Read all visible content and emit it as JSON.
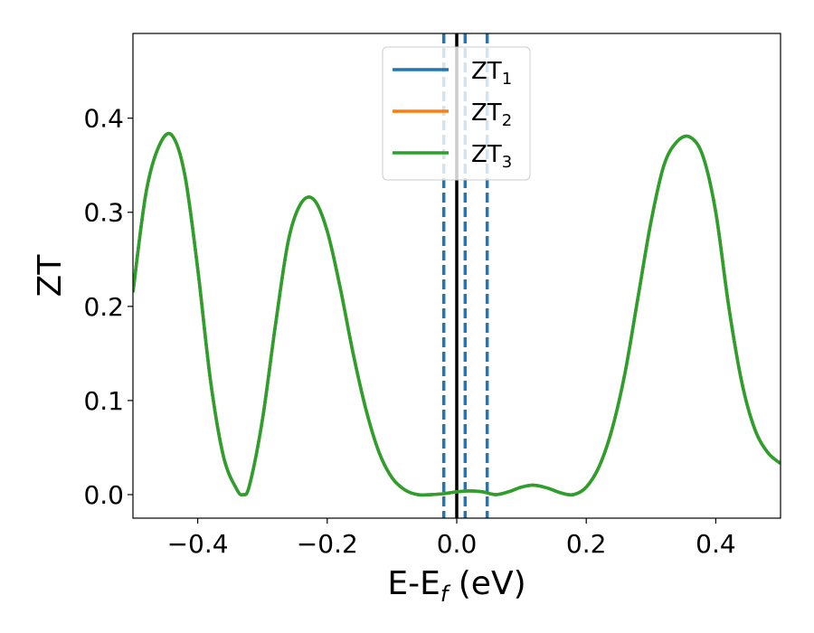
{
  "chart_data": {
    "type": "line",
    "xlabel": {
      "main": "E-E",
      "sub": "f",
      "tail": " (eV)"
    },
    "ylabel": "ZT",
    "xlim": [
      -0.5,
      0.5
    ],
    "ylim": [
      -0.025,
      0.49
    ],
    "xticks": [
      -0.4,
      -0.2,
      0.0,
      0.2,
      0.4
    ],
    "xtick_labels": [
      "−0.4",
      "−0.2",
      "0.0",
      "0.2",
      "0.4"
    ],
    "yticks": [
      0.0,
      0.1,
      0.2,
      0.3,
      0.4
    ],
    "ytick_labels": [
      "0.0",
      "0.1",
      "0.2",
      "0.3",
      "0.4"
    ],
    "grid": false,
    "legend_position": "top-center",
    "x": [
      -0.5,
      -0.48,
      -0.46,
      -0.44,
      -0.42,
      -0.4,
      -0.38,
      -0.36,
      -0.34,
      -0.33,
      -0.32,
      -0.3,
      -0.28,
      -0.26,
      -0.24,
      -0.22,
      -0.2,
      -0.18,
      -0.16,
      -0.14,
      -0.12,
      -0.1,
      -0.08,
      -0.06,
      -0.04,
      -0.02,
      0.0,
      0.02,
      0.04,
      0.06,
      0.08,
      0.1,
      0.12,
      0.14,
      0.16,
      0.18,
      0.2,
      0.22,
      0.24,
      0.26,
      0.28,
      0.3,
      0.32,
      0.34,
      0.36,
      0.38,
      0.4,
      0.42,
      0.44,
      0.46,
      0.48,
      0.5
    ],
    "series": [
      {
        "name": "ZT",
        "name_sub": "1",
        "color": "#1f77b4",
        "values": [
          0.215,
          0.32,
          0.37,
          0.382,
          0.34,
          0.24,
          0.12,
          0.04,
          0.006,
          0.0,
          0.01,
          0.08,
          0.18,
          0.27,
          0.31,
          0.313,
          0.28,
          0.22,
          0.15,
          0.09,
          0.045,
          0.018,
          0.005,
          0.0,
          0.0,
          0.001,
          0.003,
          0.004,
          0.003,
          0.0,
          0.003,
          0.008,
          0.01,
          0.007,
          0.002,
          0.0,
          0.008,
          0.03,
          0.07,
          0.13,
          0.21,
          0.29,
          0.35,
          0.375,
          0.38,
          0.36,
          0.3,
          0.2,
          0.12,
          0.07,
          0.045,
          0.033
        ]
      },
      {
        "name": "ZT",
        "name_sub": "2",
        "color": "#ff7f0e",
        "values": [
          0.215,
          0.32,
          0.37,
          0.382,
          0.34,
          0.24,
          0.12,
          0.04,
          0.006,
          0.0,
          0.01,
          0.08,
          0.18,
          0.27,
          0.31,
          0.313,
          0.28,
          0.22,
          0.15,
          0.09,
          0.045,
          0.018,
          0.005,
          0.0,
          0.0,
          0.001,
          0.003,
          0.004,
          0.003,
          0.0,
          0.003,
          0.008,
          0.01,
          0.007,
          0.002,
          0.0,
          0.008,
          0.03,
          0.07,
          0.13,
          0.21,
          0.29,
          0.35,
          0.375,
          0.38,
          0.36,
          0.3,
          0.2,
          0.12,
          0.07,
          0.045,
          0.033
        ]
      },
      {
        "name": "ZT",
        "name_sub": "3",
        "color": "#2ca02c",
        "values": [
          0.215,
          0.32,
          0.37,
          0.382,
          0.34,
          0.24,
          0.12,
          0.04,
          0.006,
          0.0,
          0.01,
          0.08,
          0.18,
          0.27,
          0.31,
          0.313,
          0.28,
          0.22,
          0.15,
          0.09,
          0.045,
          0.018,
          0.005,
          0.0,
          0.0,
          0.001,
          0.003,
          0.004,
          0.003,
          0.0,
          0.003,
          0.008,
          0.01,
          0.007,
          0.002,
          0.0,
          0.008,
          0.03,
          0.07,
          0.13,
          0.21,
          0.29,
          0.35,
          0.375,
          0.38,
          0.36,
          0.3,
          0.2,
          0.12,
          0.07,
          0.045,
          0.033
        ]
      }
    ],
    "vlines": [
      {
        "x": -0.02,
        "style": "dashed",
        "color": "#1f77b4"
      },
      {
        "x": 0.0,
        "style": "solid",
        "color": "#000000"
      },
      {
        "x": 0.013,
        "style": "dashed",
        "color": "#1f77b4"
      },
      {
        "x": 0.047,
        "style": "dashed",
        "color": "#1f77b4"
      }
    ]
  }
}
